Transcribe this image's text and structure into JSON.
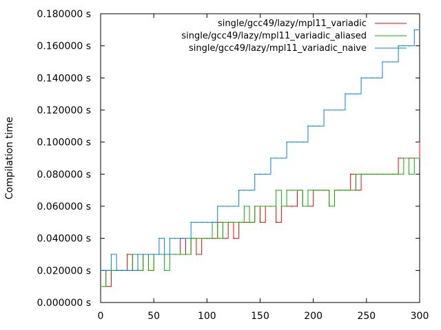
{
  "chart_data": {
    "type": "line",
    "title": "",
    "xlabel": "",
    "ylabel": "Compilation time",
    "xlim": [
      0,
      300
    ],
    "ylim": [
      0,
      0.18
    ],
    "grid": false,
    "legend_position": "top-right",
    "x_ticks": [
      {
        "value": 0,
        "label": "0"
      },
      {
        "value": 50,
        "label": "50"
      },
      {
        "value": 100,
        "label": "100"
      },
      {
        "value": 150,
        "label": "150"
      },
      {
        "value": 200,
        "label": "200"
      },
      {
        "value": 250,
        "label": "250"
      },
      {
        "value": 300,
        "label": "300"
      }
    ],
    "y_ticks": [
      {
        "value": 0.0,
        "label": "0.000000 s"
      },
      {
        "value": 0.02,
        "label": "0.020000 s"
      },
      {
        "value": 0.04,
        "label": "0.040000 s"
      },
      {
        "value": 0.06,
        "label": "0.060000 s"
      },
      {
        "value": 0.08,
        "label": "0.080000 s"
      },
      {
        "value": 0.1,
        "label": "0.100000 s"
      },
      {
        "value": 0.12,
        "label": "0.120000 s"
      },
      {
        "value": 0.14,
        "label": "0.140000 s"
      },
      {
        "value": 0.16,
        "label": "0.160000 s"
      },
      {
        "value": 0.18,
        "label": "0.180000 s"
      }
    ],
    "series": [
      {
        "name": "single/gcc49/lazy/mpl11_variadic",
        "color": "#ff0000",
        "x": [
          0,
          5,
          10,
          15,
          20,
          25,
          30,
          35,
          40,
          45,
          50,
          55,
          60,
          65,
          70,
          75,
          80,
          85,
          90,
          95,
          100,
          105,
          110,
          115,
          120,
          125,
          130,
          135,
          140,
          145,
          150,
          155,
          160,
          165,
          170,
          175,
          180,
          185,
          190,
          195,
          200,
          205,
          210,
          215,
          220,
          225,
          230,
          235,
          240,
          245,
          250,
          255,
          260,
          265,
          270,
          275,
          280,
          285,
          290,
          295,
          300
        ],
        "y": [
          0.02,
          0.01,
          0.02,
          0.02,
          0.02,
          0.03,
          0.02,
          0.02,
          0.03,
          0.02,
          0.03,
          0.03,
          0.03,
          0.03,
          0.03,
          0.04,
          0.03,
          0.04,
          0.03,
          0.04,
          0.04,
          0.04,
          0.05,
          0.04,
          0.05,
          0.04,
          0.05,
          0.05,
          0.05,
          0.06,
          0.05,
          0.06,
          0.06,
          0.05,
          0.06,
          0.06,
          0.06,
          0.07,
          0.06,
          0.06,
          0.07,
          0.07,
          0.07,
          0.06,
          0.07,
          0.07,
          0.07,
          0.08,
          0.07,
          0.08,
          0.08,
          0.08,
          0.08,
          0.08,
          0.08,
          0.08,
          0.09,
          0.09,
          0.09,
          0.09,
          0.1
        ]
      },
      {
        "name": "single/gcc49/lazy/mpl11_variadic_aliased",
        "color": "#00bb00",
        "x": [
          0,
          5,
          10,
          15,
          20,
          25,
          30,
          35,
          40,
          45,
          50,
          55,
          60,
          65,
          70,
          75,
          80,
          85,
          90,
          95,
          100,
          105,
          110,
          115,
          120,
          125,
          130,
          135,
          140,
          145,
          150,
          155,
          160,
          165,
          170,
          175,
          180,
          185,
          190,
          195,
          200,
          205,
          210,
          215,
          220,
          225,
          230,
          235,
          240,
          245,
          250,
          255,
          260,
          265,
          270,
          275,
          280,
          285,
          290,
          295,
          300
        ],
        "y": [
          0.01,
          0.02,
          0.02,
          0.02,
          0.02,
          0.02,
          0.03,
          0.02,
          0.03,
          0.02,
          0.03,
          0.03,
          0.02,
          0.03,
          0.03,
          0.03,
          0.03,
          0.04,
          0.04,
          0.04,
          0.04,
          0.05,
          0.04,
          0.05,
          0.05,
          0.05,
          0.05,
          0.06,
          0.05,
          0.06,
          0.06,
          0.06,
          0.06,
          0.07,
          0.06,
          0.07,
          0.07,
          0.07,
          0.06,
          0.07,
          0.07,
          0.07,
          0.07,
          0.06,
          0.07,
          0.07,
          0.07,
          0.07,
          0.08,
          0.08,
          0.08,
          0.08,
          0.08,
          0.08,
          0.08,
          0.08,
          0.08,
          0.09,
          0.08,
          0.09,
          0.09
        ]
      },
      {
        "name": "single/gcc49/lazy/mpl11_variadic_naive",
        "color": "#0080ff",
        "x": [
          0,
          5,
          10,
          15,
          20,
          25,
          30,
          35,
          40,
          45,
          50,
          55,
          60,
          65,
          70,
          75,
          80,
          85,
          90,
          95,
          100,
          105,
          110,
          115,
          120,
          125,
          130,
          135,
          140,
          145,
          150,
          155,
          160,
          165,
          170,
          175,
          180,
          185,
          190,
          195,
          200,
          205,
          210,
          215,
          220,
          225,
          230,
          235,
          240,
          245,
          250,
          255,
          260,
          265,
          270,
          275,
          280,
          285,
          290,
          295,
          300
        ],
        "y": [
          0.02,
          0.02,
          0.03,
          0.02,
          0.02,
          0.02,
          0.02,
          0.03,
          0.03,
          0.03,
          0.03,
          0.04,
          0.03,
          0.04,
          0.04,
          0.04,
          0.04,
          0.05,
          0.05,
          0.05,
          0.05,
          0.05,
          0.06,
          0.06,
          0.06,
          0.06,
          0.07,
          0.07,
          0.07,
          0.08,
          0.08,
          0.08,
          0.09,
          0.09,
          0.09,
          0.1,
          0.1,
          0.1,
          0.1,
          0.11,
          0.11,
          0.11,
          0.12,
          0.12,
          0.12,
          0.12,
          0.13,
          0.13,
          0.13,
          0.14,
          0.14,
          0.14,
          0.14,
          0.15,
          0.15,
          0.15,
          0.16,
          0.16,
          0.16,
          0.17,
          0.17
        ]
      }
    ]
  }
}
